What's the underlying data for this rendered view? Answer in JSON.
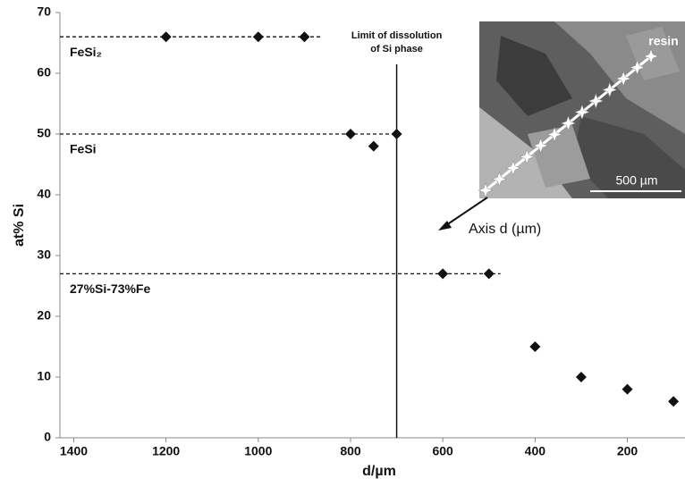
{
  "chart_data": {
    "type": "scatter",
    "x_label": "d/µm",
    "y_label": "at% Si",
    "x": [
      1200,
      1000,
      900,
      800,
      750,
      700,
      600,
      500,
      400,
      300,
      200,
      100
    ],
    "values": [
      66,
      66,
      66,
      50,
      48,
      50,
      27,
      27,
      15,
      10,
      8,
      6
    ],
    "color": "#111111",
    "xlim": [
      1430,
      75
    ],
    "xticks": [
      1400,
      1200,
      1000,
      800,
      600,
      400,
      200
    ],
    "ylim": [
      0,
      70
    ],
    "yticks": [
      0,
      10,
      20,
      30,
      40,
      50,
      60,
      70
    ],
    "reference_lines": [
      {
        "y": 66,
        "x_end": 865,
        "label": "FeSi₂"
      },
      {
        "y": 50,
        "x_end": 700,
        "label": "FeSi"
      },
      {
        "y": 27,
        "x_end": 475,
        "label": "27%Si-73%Fe"
      }
    ],
    "vertical_line": {
      "x": 700,
      "label": [
        "Limit of dissolution",
        "of Si phase"
      ]
    },
    "inset": {
      "labels": [
        "resin",
        "500 µm"
      ],
      "caption": "Axis d (µm)"
    }
  }
}
